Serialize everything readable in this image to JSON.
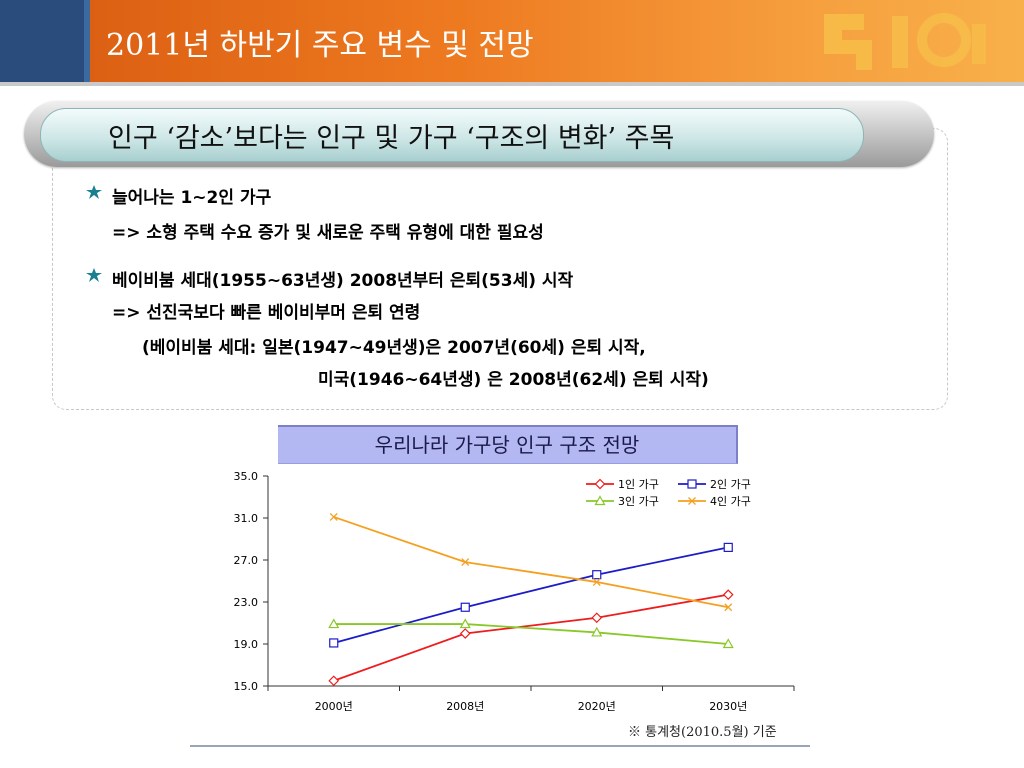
{
  "header": {
    "title": "2011년 하반기 주요 변수 및 전망"
  },
  "banner": {
    "text": "인구 ‘감소’보다는 인구 및 가구 ‘구조의 변화’ 주목"
  },
  "bullets": [
    {
      "title": "늘어나는 1~2인 가구",
      "lines": [
        "=> 소형 주택 수요 증가 및 새로운 주택 유형에 대한 필요성"
      ]
    },
    {
      "title": "베이비붐 세대(1955~63년생) 2008년부터 은퇴(53세) 시작",
      "lines": [
        "=> 선진국보다 빠른 베이비부머 은퇴 연령",
        "(베이비붐 세대: 일본(1947~49년생)은 2007년(60세) 은퇴 시작,",
        "미국(1946~64년생) 은 2008년(62세) 은퇴 시작)"
      ]
    }
  ],
  "chart_title": "우리나라 가구당 인구 구조 전망",
  "source": "※ 통계청(2010.5월) 기준",
  "colors": {
    "series1": "#ee1c1c",
    "series2": "#1c1cc8",
    "series3": "#88c828",
    "series4": "#f5a020"
  },
  "chart_data": {
    "type": "line",
    "categories": [
      "2000년",
      "2008년",
      "2020년",
      "2030년"
    ],
    "yticks": [
      "15.0",
      "19.0",
      "23.0",
      "27.0",
      "31.0",
      "35.0"
    ],
    "ylim": [
      15,
      35
    ],
    "legend_position": "top-right",
    "grid": false,
    "series": [
      {
        "name": "1인 가구",
        "marker": "diamond",
        "values": [
          15.5,
          20.0,
          21.5,
          23.7
        ]
      },
      {
        "name": "2인 가구",
        "marker": "square",
        "values": [
          19.1,
          22.5,
          25.6,
          28.2
        ]
      },
      {
        "name": "3인 가구",
        "marker": "triangle",
        "values": [
          20.9,
          20.9,
          20.1,
          19.0
        ]
      },
      {
        "name": "4인 가구",
        "marker": "x",
        "values": [
          31.1,
          26.8,
          24.9,
          22.5
        ]
      }
    ]
  }
}
